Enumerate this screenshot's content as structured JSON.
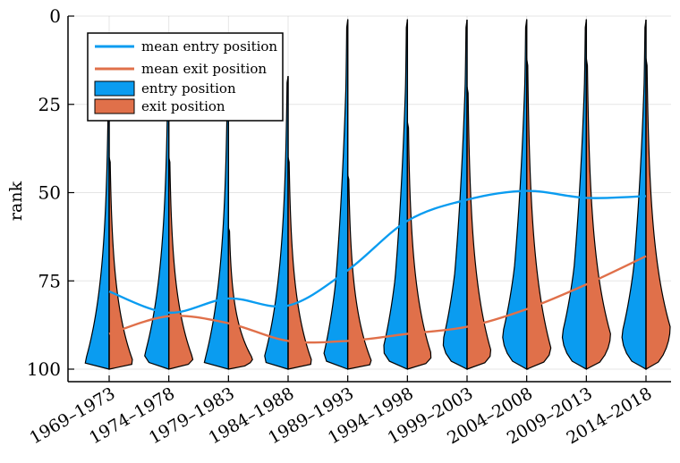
{
  "chart_data": {
    "type": "violin",
    "xlabel": "",
    "ylabel": "rank",
    "ylim": [
      0,
      100
    ],
    "y_reversed": true,
    "yticks": [
      0,
      25,
      50,
      75,
      100
    ],
    "grid": true,
    "legend_position": "top-left",
    "categories": [
      "1969–1973",
      "1974–1978",
      "1979–1983",
      "1984–1988",
      "1989–1993",
      "1994–1998",
      "1999–2003",
      "2004–2008",
      "2009–2013",
      "2014–2018"
    ],
    "series": [
      {
        "name": "mean entry position",
        "kind": "line",
        "color": "#0a9cf0",
        "values": [
          78,
          84,
          80,
          82,
          72,
          58,
          52,
          49.5,
          51.5,
          51
        ]
      },
      {
        "name": "mean exit position",
        "kind": "line",
        "color": "#e0704a",
        "values": [
          90,
          85,
          87,
          92,
          92,
          90,
          88,
          83,
          76,
          68
        ]
      },
      {
        "name": "entry position",
        "kind": "violin-left",
        "color": "#0a9cf0",
        "min": [
          24,
          17,
          17,
          17,
          1,
          1,
          1,
          1,
          1,
          1
        ],
        "mode": [
          98,
          96,
          98,
          97,
          96,
          94,
          92,
          90,
          90,
          90
        ]
      },
      {
        "name": "exit position",
        "kind": "violin-right",
        "color": "#e0704a",
        "min": [
          40,
          40,
          60,
          40,
          45,
          30,
          20,
          12,
          12,
          12
        ],
        "mode": [
          98,
          97,
          97,
          98,
          98,
          96,
          95,
          94,
          90,
          88
        ]
      }
    ]
  }
}
